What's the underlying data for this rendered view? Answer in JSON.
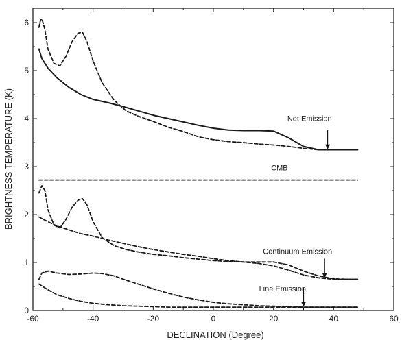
{
  "chart_data": {
    "type": "line",
    "title": "",
    "xlabel": "DECLINATION (Degree)",
    "ylabel": "BRIGHTNESS TEMPERATURE (K)",
    "xlim": [
      -60,
      60
    ],
    "ylim": [
      0,
      6.3
    ],
    "xticks": [
      -60,
      -40,
      -20,
      0,
      20,
      40,
      60
    ],
    "yticks": [
      0,
      1,
      2,
      3,
      4,
      5,
      6
    ],
    "grid": false,
    "series": [
      {
        "style": "solid",
        "x": [
          -58,
          -57,
          -55,
          -52,
          -48,
          -44,
          -40,
          -35,
          -30,
          -25,
          -20,
          -15,
          -10,
          -5,
          0,
          5,
          10,
          15,
          20,
          25,
          30,
          35,
          40,
          45,
          48
        ],
        "y": [
          5.45,
          5.25,
          5.05,
          4.85,
          4.65,
          4.5,
          4.4,
          4.33,
          4.25,
          4.16,
          4.07,
          4.0,
          3.93,
          3.86,
          3.8,
          3.76,
          3.75,
          3.75,
          3.74,
          3.6,
          3.42,
          3.35,
          3.35,
          3.35,
          3.35
        ]
      },
      {
        "style": "dashed",
        "x": [
          -58,
          -57.5,
          -57,
          -56,
          -55,
          -53,
          -51,
          -49,
          -47,
          -45,
          -43.5,
          -42,
          -40,
          -37,
          -33,
          -29,
          -25,
          -20,
          -15,
          -10,
          -5,
          0,
          5,
          10,
          15,
          20,
          25,
          30,
          35,
          40,
          45,
          48
        ],
        "y": [
          5.9,
          6.05,
          6.08,
          5.85,
          5.45,
          5.15,
          5.1,
          5.3,
          5.6,
          5.78,
          5.8,
          5.6,
          5.2,
          4.75,
          4.38,
          4.16,
          4.05,
          3.94,
          3.82,
          3.73,
          3.62,
          3.56,
          3.52,
          3.5,
          3.47,
          3.45,
          3.42,
          3.38,
          3.35,
          3.35,
          3.35,
          3.35
        ]
      },
      {
        "style": "dashed",
        "x": [
          -58,
          -50,
          -40,
          -30,
          -20,
          -10,
          0,
          10,
          20,
          30,
          40,
          48
        ],
        "y": [
          2.72,
          2.72,
          2.72,
          2.72,
          2.72,
          2.72,
          2.72,
          2.72,
          2.72,
          2.72,
          2.72,
          2.72
        ]
      },
      {
        "style": "dashed",
        "x": [
          -58,
          -57,
          -56,
          -55,
          -53,
          -51,
          -49,
          -47,
          -45,
          -43.5,
          -42,
          -40,
          -37,
          -33,
          -29,
          -25,
          -20,
          -15,
          -10,
          -5,
          0,
          5,
          10,
          15,
          20,
          25,
          30,
          35,
          40,
          45,
          48
        ],
        "y": [
          2.45,
          2.6,
          2.5,
          2.1,
          1.78,
          1.72,
          1.9,
          2.15,
          2.3,
          2.33,
          2.2,
          1.85,
          1.52,
          1.35,
          1.27,
          1.22,
          1.17,
          1.14,
          1.1,
          1.07,
          1.04,
          1.02,
          1.01,
          1.01,
          1.01,
          0.95,
          0.82,
          0.72,
          0.66,
          0.65,
          0.65
        ]
      },
      {
        "style": "dashed",
        "x": [
          -58,
          -55,
          -52,
          -48,
          -44,
          -40,
          -35,
          -30,
          -25,
          -20,
          -15,
          -10,
          -5,
          0,
          5,
          10,
          15,
          20,
          25,
          30,
          35,
          40,
          45,
          48
        ],
        "y": [
          1.95,
          1.85,
          1.76,
          1.68,
          1.6,
          1.55,
          1.47,
          1.4,
          1.33,
          1.27,
          1.22,
          1.17,
          1.13,
          1.08,
          1.04,
          1.01,
          0.98,
          0.93,
          0.84,
          0.74,
          0.68,
          0.65,
          0.65,
          0.65
        ]
      },
      {
        "style": "dashed",
        "x": [
          -58,
          -57,
          -55,
          -52,
          -48,
          -44,
          -40,
          -37,
          -33,
          -29,
          -25,
          -20,
          -15,
          -10,
          -5,
          0,
          5,
          10,
          15,
          20,
          25,
          30,
          35,
          40,
          45,
          48
        ],
        "y": [
          0.65,
          0.78,
          0.82,
          0.78,
          0.75,
          0.76,
          0.78,
          0.77,
          0.72,
          0.63,
          0.55,
          0.45,
          0.36,
          0.28,
          0.22,
          0.17,
          0.14,
          0.12,
          0.1,
          0.09,
          0.08,
          0.07,
          0.07,
          0.07,
          0.07,
          0.07
        ]
      },
      {
        "style": "dashed",
        "x": [
          -58,
          -55,
          -52,
          -48,
          -44,
          -40,
          -35,
          -30,
          -25,
          -20,
          -15,
          -10,
          -5,
          0,
          5,
          10,
          20,
          30,
          40,
          48
        ],
        "y": [
          0.55,
          0.43,
          0.33,
          0.25,
          0.19,
          0.15,
          0.12,
          0.1,
          0.09,
          0.08,
          0.07,
          0.07,
          0.07,
          0.07,
          0.07,
          0.07,
          0.07,
          0.07,
          0.07,
          0.07
        ]
      }
    ],
    "annotations": [
      {
        "text": "Net Emission",
        "x": 32,
        "y": 3.95,
        "arrow_to": [
          38,
          3.36
        ]
      },
      {
        "text": "CMB",
        "x": 22,
        "y": 2.92
      },
      {
        "text": "Continuum Emission",
        "x": 28,
        "y": 1.18,
        "arrow_to": [
          37,
          0.68
        ]
      },
      {
        "text": "Line Emission",
        "x": 23,
        "y": 0.4,
        "arrow_to": [
          30,
          0.08
        ]
      }
    ]
  }
}
